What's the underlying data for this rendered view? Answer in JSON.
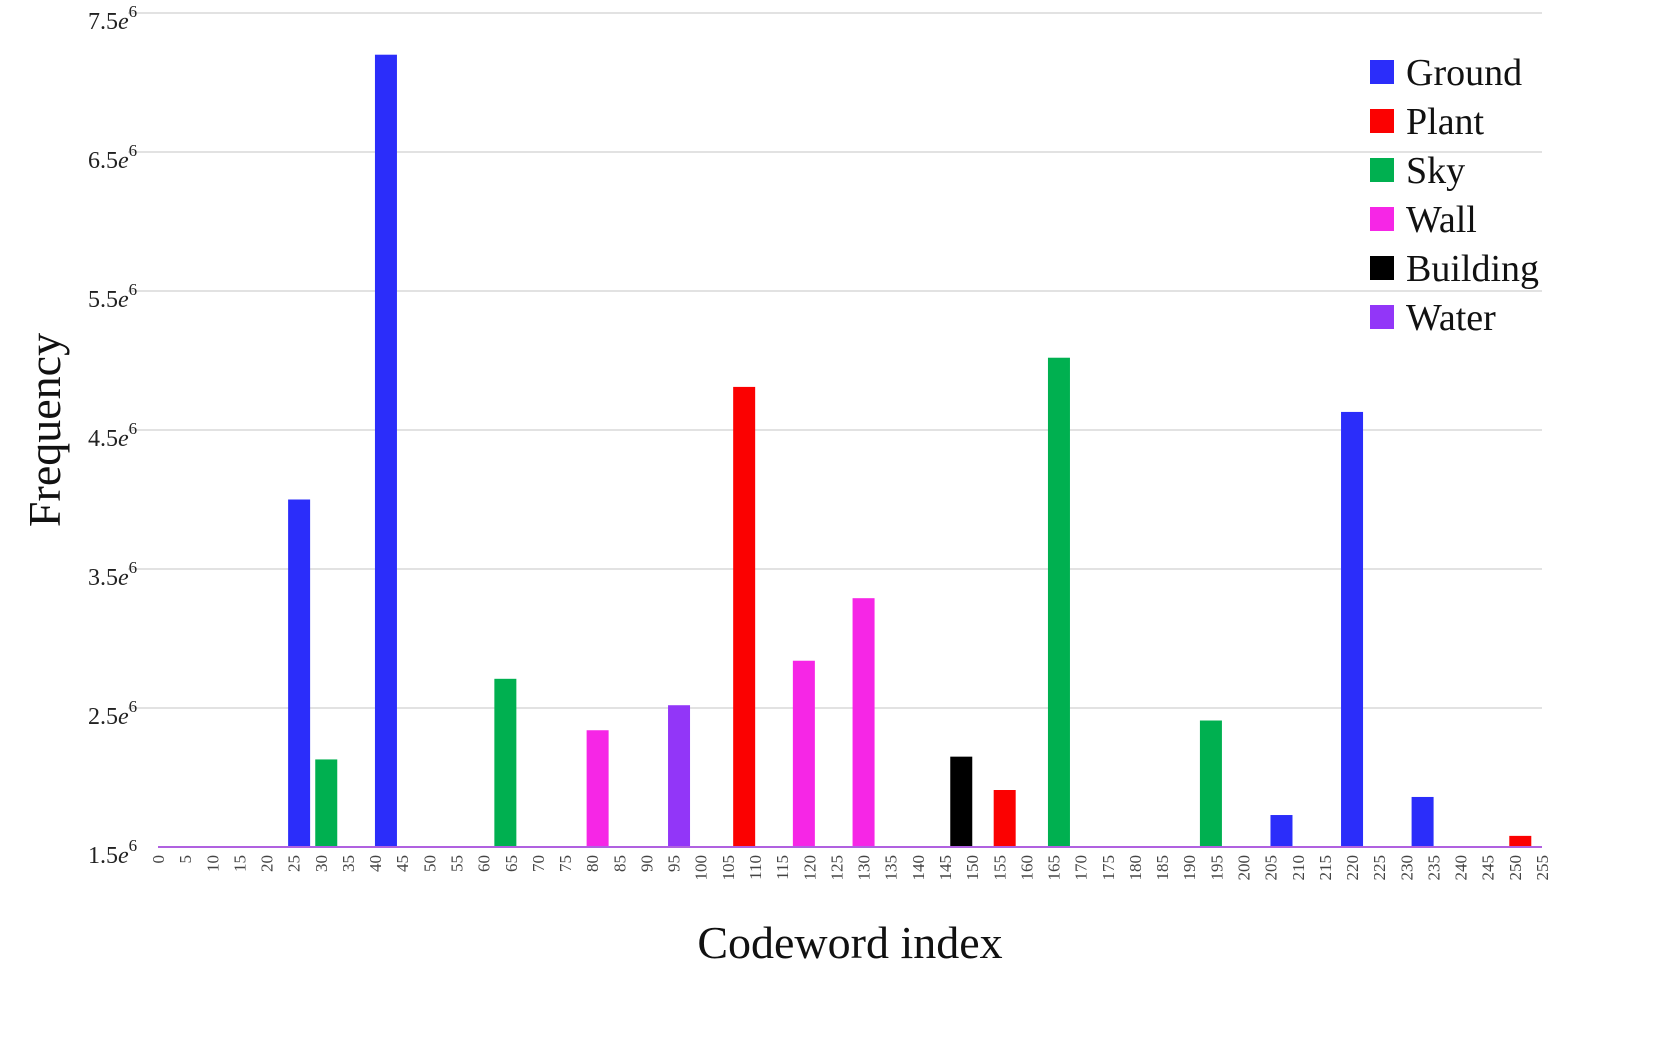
{
  "chart_data": {
    "type": "bar",
    "title": "",
    "xlabel": "Codeword index",
    "ylabel": "Frequency",
    "xlim": [
      0,
      255
    ],
    "x_ticks": [
      0,
      5,
      10,
      15,
      20,
      25,
      30,
      35,
      40,
      45,
      50,
      55,
      60,
      65,
      70,
      75,
      80,
      85,
      90,
      95,
      100,
      105,
      110,
      115,
      120,
      125,
      130,
      135,
      140,
      145,
      150,
      155,
      160,
      165,
      170,
      175,
      180,
      185,
      190,
      195,
      200,
      205,
      210,
      215,
      220,
      225,
      230,
      235,
      240,
      245,
      250,
      255
    ],
    "ylim": [
      1500000,
      7500000
    ],
    "y_ticks": [
      {
        "value": 1500000,
        "mantissa": "1.5",
        "base": "e",
        "exp": "6"
      },
      {
        "value": 2500000,
        "mantissa": "2.5",
        "base": "e",
        "exp": "6"
      },
      {
        "value": 3500000,
        "mantissa": "3.5",
        "base": "e",
        "exp": "6"
      },
      {
        "value": 4500000,
        "mantissa": "4.5",
        "base": "e",
        "exp": "6"
      },
      {
        "value": 5500000,
        "mantissa": "5.5",
        "base": "e",
        "exp": "6"
      },
      {
        "value": 6500000,
        "mantissa": "6.5",
        "base": "e",
        "exp": "6"
      },
      {
        "value": 7500000,
        "mantissa": "7.5",
        "base": "e",
        "exp": "6"
      }
    ],
    "grid": true,
    "legend_position": "top-right",
    "series": [
      {
        "name": "Ground",
        "color": "#2b2dfa",
        "points": [
          {
            "x": 26,
            "y": 4000000
          },
          {
            "x": 42,
            "y": 7200000
          },
          {
            "x": 207,
            "y": 1730000
          },
          {
            "x": 220,
            "y": 4630000
          },
          {
            "x": 233,
            "y": 1860000
          }
        ]
      },
      {
        "name": "Plant",
        "color": "#fb0101",
        "points": [
          {
            "x": 108,
            "y": 4810000
          },
          {
            "x": 156,
            "y": 1910000
          },
          {
            "x": 251,
            "y": 1580000
          }
        ]
      },
      {
        "name": "Sky",
        "color": "#00b050",
        "points": [
          {
            "x": 31,
            "y": 2130000
          },
          {
            "x": 64,
            "y": 2710000
          },
          {
            "x": 166,
            "y": 5020000
          },
          {
            "x": 194,
            "y": 2410000
          }
        ]
      },
      {
        "name": "Wall",
        "color": "#f626e6",
        "points": [
          {
            "x": 81,
            "y": 2340000
          },
          {
            "x": 119,
            "y": 2840000
          },
          {
            "x": 130,
            "y": 3290000
          }
        ]
      },
      {
        "name": "Building",
        "color": "#000000",
        "points": [
          {
            "x": 148,
            "y": 2150000
          }
        ]
      },
      {
        "name": "Water",
        "color": "#9236f8",
        "points": [
          {
            "x": 96,
            "y": 2520000
          }
        ]
      }
    ]
  }
}
